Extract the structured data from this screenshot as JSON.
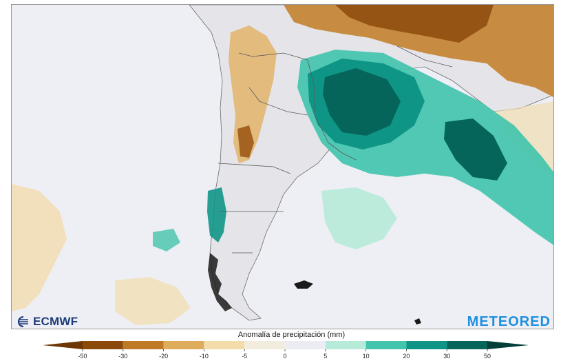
{
  "map": {
    "title": "Anomalía de precipitación (mm)",
    "branding": {
      "left_logo": "ECMWF",
      "right_logo": "METEORED"
    },
    "features": [
      {
        "name": "wet-anomaly-southern-brazil",
        "category": "30 to 50"
      },
      {
        "name": "wet-anomaly-atlantic-band",
        "category": "20 to 30"
      },
      {
        "name": "dry-anomaly-central-brazil",
        "category": "-50 to -20"
      },
      {
        "name": "dry-anomaly-andes",
        "category": "-30 to -10"
      }
    ]
  },
  "legend": {
    "ticks": [
      "-50",
      "-30",
      "-20",
      "-10",
      "-5",
      "0",
      "5",
      "10",
      "20",
      "30",
      "50"
    ],
    "colors": [
      "#8c4a0a",
      "#bf7a25",
      "#dfac5c",
      "#f3dcaa",
      "#f2ecde",
      "#ececf4",
      "#b6ead9",
      "#43c4ad",
      "#0f9586",
      "#05655a"
    ],
    "arrow_colors": {
      "low": "#6e3604",
      "high": "#033f38"
    }
  },
  "colors": {
    "ocean": "#eeeef5",
    "land": "#e6e6ea",
    "border": "#555555",
    "ecmwf_blue": "#1f3d7a",
    "meteored_blue": "#1e90e0"
  }
}
